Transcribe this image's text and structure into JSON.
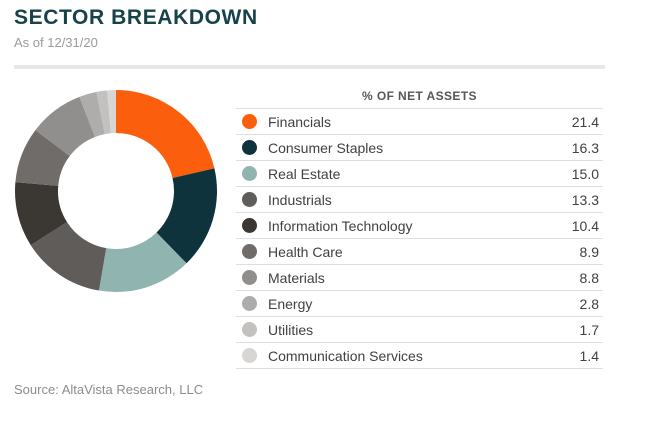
{
  "header": {
    "title": "SECTOR BREAKDOWN",
    "subtitle": "As of 12/31/20"
  },
  "table": {
    "column_header": "% OF NET ASSETS"
  },
  "footer": {
    "source": "Source: AltaVista Research, LLC"
  },
  "colors": {
    "title_text": "#17424C",
    "subtitle_text": "#9B9B9B",
    "divider": "#E7E7E7",
    "row_divider": "#DEDEDE",
    "body_text": "#414141",
    "column_header_text": "#565759",
    "source_text": "#8C8C8C",
    "accent_orange": "#FB5E0C",
    "accent_teal": "#0E333C"
  },
  "chart_data": {
    "type": "pie",
    "subtype": "donut",
    "title": "SECTOR BREAKDOWN",
    "value_label": "% OF NET ASSETS",
    "legend_position": "right",
    "start_angle_deg": 0,
    "direction": "clockwise",
    "inner_radius_ratio": 0.57,
    "categories": [
      "Financials",
      "Consumer Staples",
      "Real Estate",
      "Industrials",
      "Information Technology",
      "Health Care",
      "Materials",
      "Energy",
      "Utilities",
      "Communication Services"
    ],
    "values": [
      21.4,
      16.3,
      15.0,
      13.3,
      10.4,
      8.9,
      8.8,
      2.8,
      1.7,
      1.4
    ],
    "colors": [
      "#FB5E0C",
      "#0E333C",
      "#90B5B1",
      "#605C59",
      "#3B3733",
      "#6F6C6A",
      "#918F8D",
      "#AEADAC",
      "#C2C1C0",
      "#D7D6D5"
    ]
  }
}
